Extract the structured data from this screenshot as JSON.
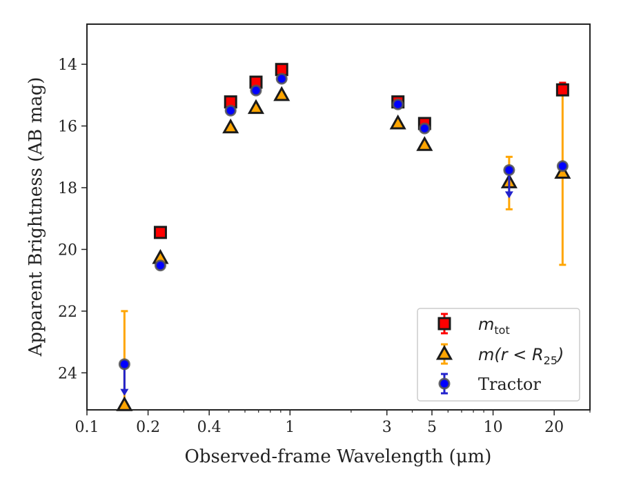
{
  "chart_data": {
    "type": "scatter",
    "xlabel": "Observed-frame Wavelength (μm)",
    "ylabel": "Apparent Brightness (AB mag)",
    "x_scale": "log",
    "xlim": [
      0.1,
      30
    ],
    "ylim": [
      25.2,
      12.7
    ],
    "y_inverted": true,
    "grid": false,
    "legend_position": "lower-right",
    "x_ticks": [
      0.1,
      0.2,
      0.4,
      1,
      3,
      5,
      10,
      20
    ],
    "x_tick_labels": [
      "0.1",
      "0.2",
      "0.4",
      "1",
      "3",
      "5",
      "10",
      "20"
    ],
    "y_ticks": [
      14,
      16,
      18,
      20,
      22,
      24
    ],
    "y_tick_labels": [
      "14",
      "16",
      "18",
      "20",
      "22",
      "24"
    ],
    "series": [
      {
        "name": "m_tot",
        "legend": {
          "math": "m",
          "sub": "tot",
          "rest": ""
        },
        "marker": "square",
        "color": "#ff0000",
        "error_color": "#ff0000",
        "points": [
          {
            "x": 0.23,
            "y": 19.45
          },
          {
            "x": 0.51,
            "y": 15.22
          },
          {
            "x": 0.68,
            "y": 14.58
          },
          {
            "x": 0.91,
            "y": 14.17
          },
          {
            "x": 3.4,
            "y": 15.22
          },
          {
            "x": 4.6,
            "y": 15.92
          },
          {
            "x": 22,
            "y": 14.83,
            "yerr_lo": 14.6,
            "yerr_hi": 15.0
          }
        ]
      },
      {
        "name": "m(r<R_25)",
        "legend": {
          "math": "m(r < R",
          "sub": "25",
          "rest": ")"
        },
        "marker": "triangle",
        "color": "#ffa500",
        "error_color": "#ffa500",
        "points": [
          {
            "x": 0.153,
            "y": 25.05,
            "yerr_lo": 22.0,
            "yerr_hi": 25.2
          },
          {
            "x": 0.23,
            "y": 20.28
          },
          {
            "x": 0.51,
            "y": 16.05
          },
          {
            "x": 0.68,
            "y": 15.42
          },
          {
            "x": 0.91,
            "y": 15.0
          },
          {
            "x": 3.4,
            "y": 15.92
          },
          {
            "x": 4.6,
            "y": 16.62
          },
          {
            "x": 12,
            "y": 17.83,
            "yerr_lo": 17.0,
            "yerr_hi": 18.7
          },
          {
            "x": 22,
            "y": 17.52,
            "yerr_lo": 14.6,
            "yerr_hi": 20.5
          }
        ]
      },
      {
        "name": "Tractor",
        "legend": {
          "text": "Tractor"
        },
        "marker": "circle",
        "color": "#0000ff",
        "error_color": "#2222cc",
        "points": [
          {
            "x": 0.153,
            "y": 23.72,
            "upper_limit_to": 24.7
          },
          {
            "x": 0.23,
            "y": 20.52
          },
          {
            "x": 0.51,
            "y": 15.5
          },
          {
            "x": 0.68,
            "y": 14.85
          },
          {
            "x": 0.91,
            "y": 14.47
          },
          {
            "x": 3.4,
            "y": 15.3
          },
          {
            "x": 4.6,
            "y": 16.08
          },
          {
            "x": 12,
            "y": 17.43,
            "upper_limit_to": 18.3
          },
          {
            "x": 22,
            "y": 17.3
          }
        ]
      }
    ]
  }
}
